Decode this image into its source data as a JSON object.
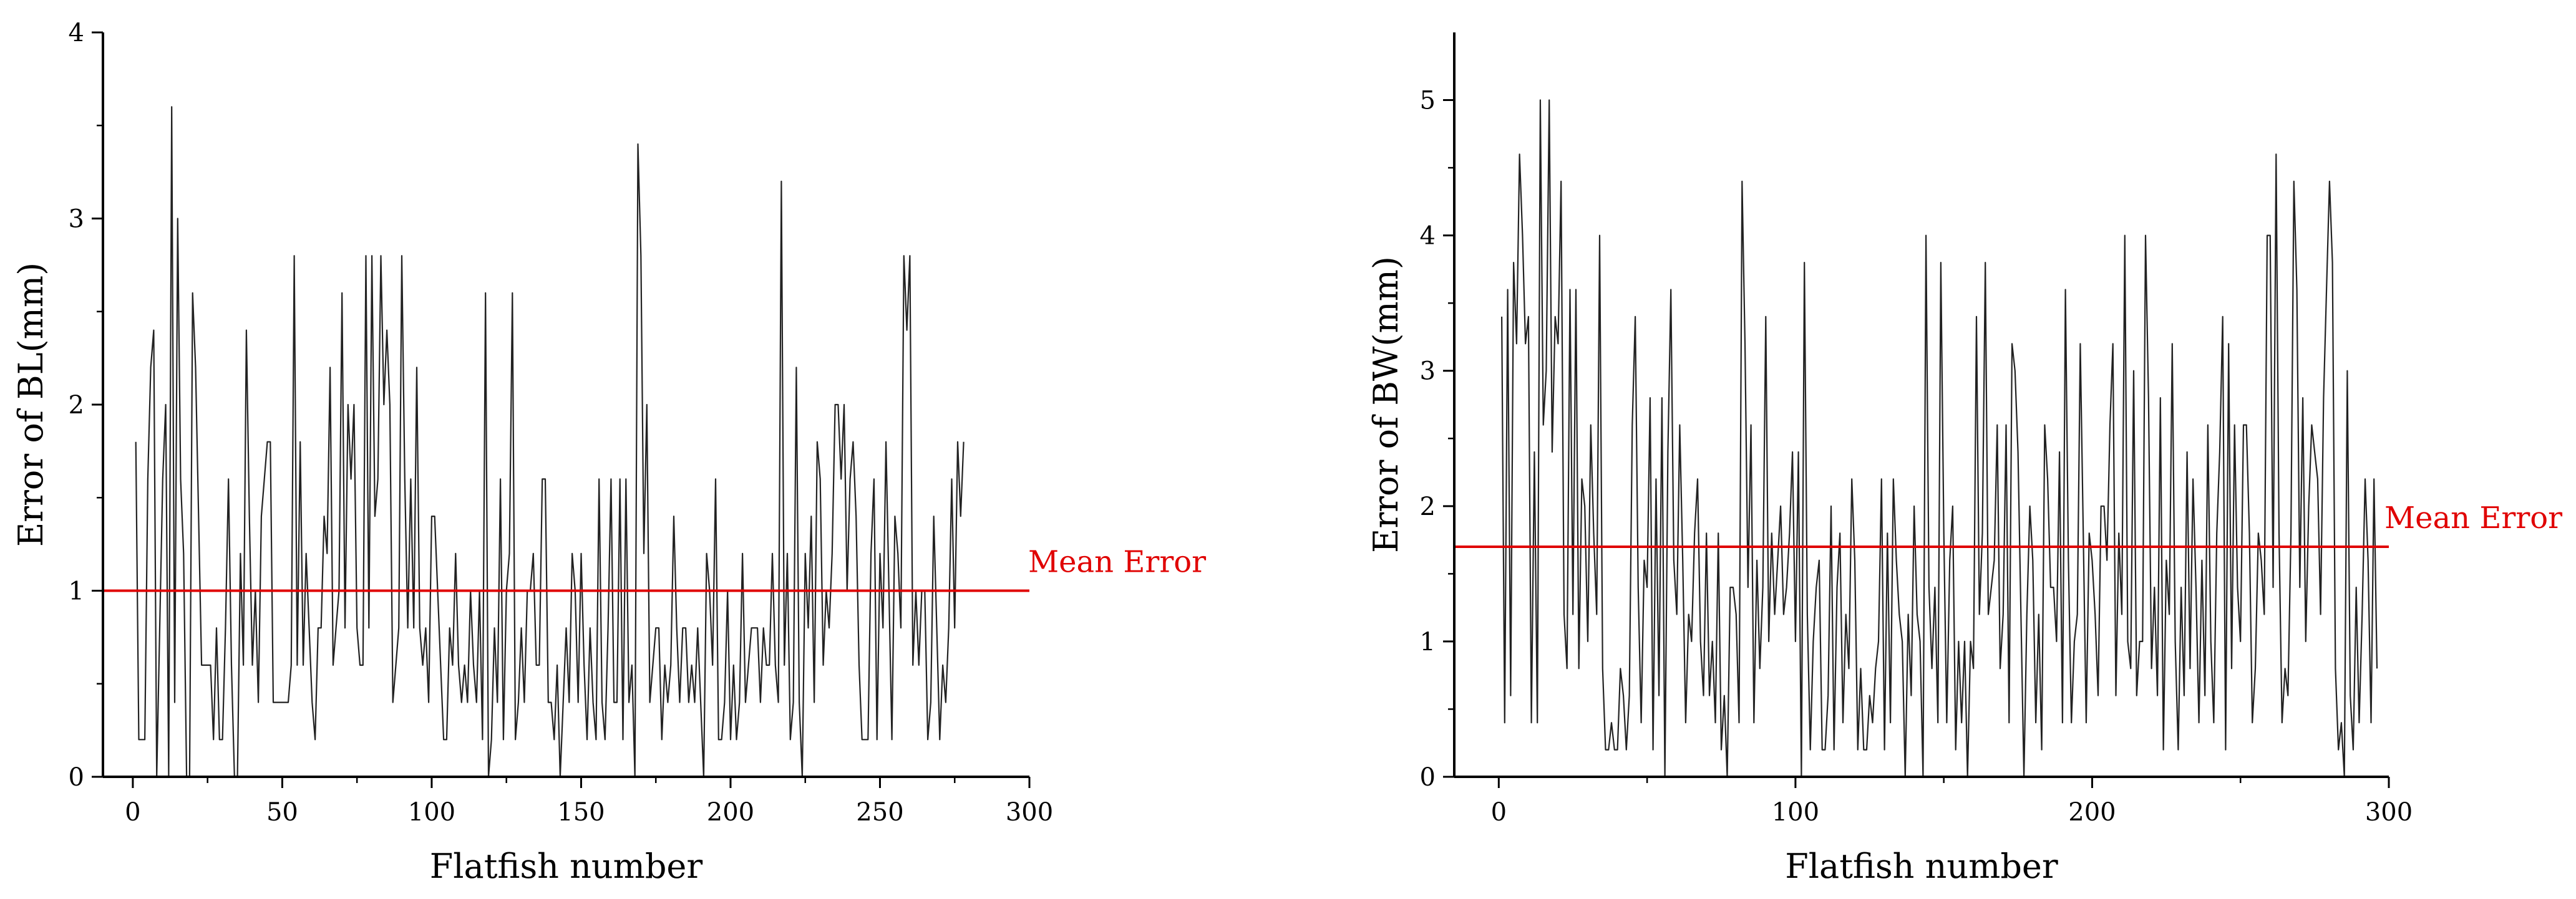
{
  "chart_data": [
    {
      "type": "line",
      "title": "",
      "xlabel": "Flatfish number",
      "ylabel": "Error of BL(mm)",
      "xlim": [
        -10,
        300
      ],
      "ylim": [
        0,
        4
      ],
      "xticks": [
        0,
        50,
        100,
        150,
        200,
        250,
        300
      ],
      "yticks": [
        0,
        1,
        2,
        3,
        4
      ],
      "grid": false,
      "series": [
        {
          "name": "",
          "color": "#222222",
          "x_start": 1,
          "values": [
            1.8,
            0.2,
            0.2,
            0.2,
            1.6,
            2.2,
            2.4,
            0.0,
            0.8,
            1.6,
            2.0,
            0.0,
            3.6,
            0.4,
            3.0,
            1.6,
            1.2,
            0.0,
            0.0,
            2.6,
            2.2,
            1.4,
            0.6,
            0.6,
            0.6,
            0.6,
            0.2,
            0.8,
            0.2,
            0.2,
            0.8,
            1.6,
            0.6,
            0.0,
            0.0,
            1.2,
            0.6,
            2.4,
            1.4,
            0.6,
            1.0,
            0.4,
            1.4,
            1.6,
            1.8,
            1.8,
            0.4,
            0.4,
            0.4,
            0.4,
            0.4,
            0.4,
            0.6,
            2.8,
            0.6,
            1.8,
            0.6,
            1.2,
            0.8,
            0.4,
            0.2,
            0.8,
            0.8,
            1.4,
            1.2,
            2.2,
            0.6,
            0.8,
            1.0,
            2.6,
            0.8,
            2.0,
            1.6,
            2.0,
            0.8,
            0.6,
            0.6,
            2.8,
            0.8,
            2.8,
            1.4,
            1.6,
            2.8,
            2.0,
            2.4,
            2.0,
            0.4,
            0.6,
            0.8,
            2.8,
            1.6,
            0.8,
            1.6,
            0.8,
            2.2,
            0.8,
            0.6,
            0.8,
            0.4,
            1.4,
            1.4,
            1.0,
            0.6,
            0.2,
            0.2,
            0.8,
            0.6,
            1.2,
            0.6,
            0.4,
            0.6,
            0.4,
            1.0,
            0.6,
            0.4,
            1.0,
            0.2,
            2.6,
            0.0,
            0.2,
            0.8,
            0.4,
            1.6,
            0.2,
            1.0,
            1.2,
            2.6,
            0.2,
            0.4,
            0.8,
            0.4,
            1.0,
            1.0,
            1.2,
            0.6,
            0.6,
            1.6,
            1.6,
            0.4,
            0.4,
            0.2,
            0.6,
            0.0,
            0.4,
            0.8,
            0.4,
            1.2,
            1.0,
            0.4,
            1.2,
            0.6,
            0.2,
            0.8,
            0.4,
            0.2,
            1.6,
            0.4,
            0.2,
            0.8,
            1.6,
            0.4,
            0.4,
            1.6,
            0.2,
            1.6,
            0.4,
            0.6,
            0.0,
            3.4,
            2.8,
            1.2,
            2.0,
            0.4,
            0.6,
            0.8,
            0.8,
            0.2,
            0.6,
            0.4,
            0.6,
            1.4,
            0.8,
            0.4,
            0.8,
            0.8,
            0.4,
            0.6,
            0.4,
            0.8,
            0.4,
            0.0,
            1.2,
            1.0,
            0.6,
            1.6,
            0.2,
            0.2,
            0.4,
            1.0,
            0.2,
            0.6,
            0.2,
            0.4,
            1.2,
            0.4,
            0.6,
            0.8,
            0.8,
            0.8,
            0.4,
            0.8,
            0.6,
            0.6,
            1.2,
            0.6,
            0.4,
            3.2,
            0.6,
            1.2,
            0.2,
            0.4,
            2.2,
            0.4,
            0.0,
            1.2,
            0.8,
            1.4,
            0.4,
            1.8,
            1.6,
            0.6,
            1.0,
            0.8,
            1.2,
            2.0,
            2.0,
            1.6,
            2.0,
            1.0,
            1.6,
            1.8,
            1.4,
            0.6,
            0.2,
            0.2,
            0.2,
            1.2,
            1.6,
            0.2,
            1.2,
            0.8,
            1.8,
            1.0,
            0.2,
            1.4,
            1.2,
            0.8,
            2.8,
            2.4,
            2.8,
            0.6,
            1.0,
            0.6,
            1.0,
            1.0,
            0.2,
            0.4,
            1.4,
            0.8,
            0.2,
            0.6,
            0.4,
            0.8,
            1.6,
            0.8,
            1.8,
            1.4,
            1.8
          ],
          "mean_value": 1.0
        }
      ],
      "annotations": [
        {
          "text": "Mean Error",
          "color": "#e00000",
          "at_y": 1.0
        }
      ]
    },
    {
      "type": "line",
      "title": "",
      "xlabel": "Flatfish number",
      "ylabel": "Error of BW(mm)",
      "xlim": [
        -15,
        300
      ],
      "ylim": [
        0,
        5.5
      ],
      "xticks": [
        0,
        100,
        200,
        300
      ],
      "yticks": [
        0,
        1,
        2,
        3,
        4,
        5
      ],
      "grid": false,
      "series": [
        {
          "name": "",
          "color": "#222222",
          "x_start": 1,
          "values": [
            3.4,
            0.4,
            3.6,
            0.6,
            3.8,
            3.2,
            4.6,
            4.0,
            3.2,
            3.4,
            0.4,
            2.4,
            0.4,
            5.0,
            2.6,
            3.0,
            5.0,
            2.4,
            3.4,
            3.2,
            4.4,
            1.2,
            0.8,
            3.6,
            1.2,
            3.6,
            0.8,
            2.2,
            2.0,
            1.0,
            2.6,
            1.8,
            1.2,
            4.0,
            0.8,
            0.2,
            0.2,
            0.4,
            0.2,
            0.2,
            0.8,
            0.6,
            0.2,
            0.6,
            2.6,
            3.4,
            1.4,
            0.4,
            1.6,
            1.4,
            2.8,
            0.2,
            2.2,
            0.6,
            2.8,
            0.0,
            2.4,
            3.6,
            1.6,
            1.2,
            2.6,
            1.6,
            0.4,
            1.2,
            1.0,
            1.8,
            2.2,
            1.0,
            0.6,
            1.8,
            0.6,
            1.0,
            0.4,
            1.8,
            0.2,
            0.6,
            0.0,
            1.4,
            1.4,
            1.2,
            0.4,
            4.4,
            3.2,
            1.4,
            2.6,
            0.4,
            1.6,
            0.8,
            1.4,
            3.4,
            1.0,
            1.8,
            1.2,
            1.6,
            2.0,
            1.2,
            1.4,
            1.8,
            2.4,
            1.0,
            2.4,
            0.0,
            3.8,
            1.2,
            0.2,
            1.0,
            1.4,
            1.6,
            0.2,
            0.2,
            0.6,
            2.0,
            0.2,
            1.4,
            1.8,
            0.4,
            1.2,
            0.8,
            2.2,
            1.6,
            0.2,
            0.8,
            0.2,
            0.2,
            0.6,
            0.4,
            0.8,
            1.0,
            2.2,
            0.2,
            1.8,
            0.4,
            2.2,
            1.6,
            1.2,
            1.0,
            0.0,
            1.2,
            0.6,
            2.0,
            1.2,
            1.0,
            0.0,
            4.0,
            1.4,
            0.8,
            1.4,
            0.4,
            3.8,
            1.8,
            0.4,
            1.6,
            2.0,
            0.2,
            1.0,
            0.4,
            1.0,
            0.0,
            1.0,
            0.8,
            3.4,
            1.2,
            1.8,
            3.8,
            1.2,
            1.4,
            1.6,
            2.6,
            0.8,
            1.2,
            2.6,
            0.4,
            3.2,
            3.0,
            2.4,
            1.2,
            0.0,
            1.2,
            2.0,
            1.6,
            0.4,
            1.2,
            0.2,
            2.6,
            2.2,
            1.4,
            1.4,
            1.0,
            2.4,
            0.4,
            3.6,
            1.6,
            0.4,
            1.0,
            1.2,
            3.2,
            1.8,
            0.4,
            1.8,
            1.6,
            1.2,
            0.6,
            2.0,
            2.0,
            1.6,
            2.6,
            3.2,
            0.6,
            1.8,
            1.2,
            4.0,
            1.0,
            0.8,
            3.0,
            0.6,
            1.0,
            1.0,
            4.0,
            2.8,
            0.8,
            1.4,
            0.6,
            2.8,
            0.2,
            1.6,
            1.2,
            3.2,
            1.0,
            0.2,
            1.4,
            0.6,
            2.4,
            0.8,
            2.2,
            1.4,
            0.4,
            1.6,
            0.6,
            2.6,
            1.0,
            0.4,
            1.8,
            2.4,
            3.4,
            0.2,
            3.2,
            0.8,
            2.6,
            1.4,
            1.0,
            2.6,
            2.6,
            1.8,
            0.4,
            0.8,
            1.8,
            1.6,
            1.2,
            4.0,
            4.0,
            1.4,
            4.6,
            1.8,
            0.4,
            0.8,
            0.6,
            1.8,
            4.4,
            3.6,
            1.4,
            2.8,
            1.0,
            2.0,
            2.6,
            2.4,
            2.2,
            1.2,
            2.8,
            3.6,
            4.4,
            3.8,
            0.8,
            0.2,
            0.4,
            0.0,
            3.0,
            0.6,
            0.2,
            1.4,
            0.4,
            1.2,
            2.2,
            1.6,
            0.4,
            2.2,
            0.8
          ],
          "mean_value": 1.7
        }
      ],
      "annotations": [
        {
          "text": "Mean Error",
          "color": "#e00000",
          "at_y": 1.7
        }
      ]
    }
  ]
}
